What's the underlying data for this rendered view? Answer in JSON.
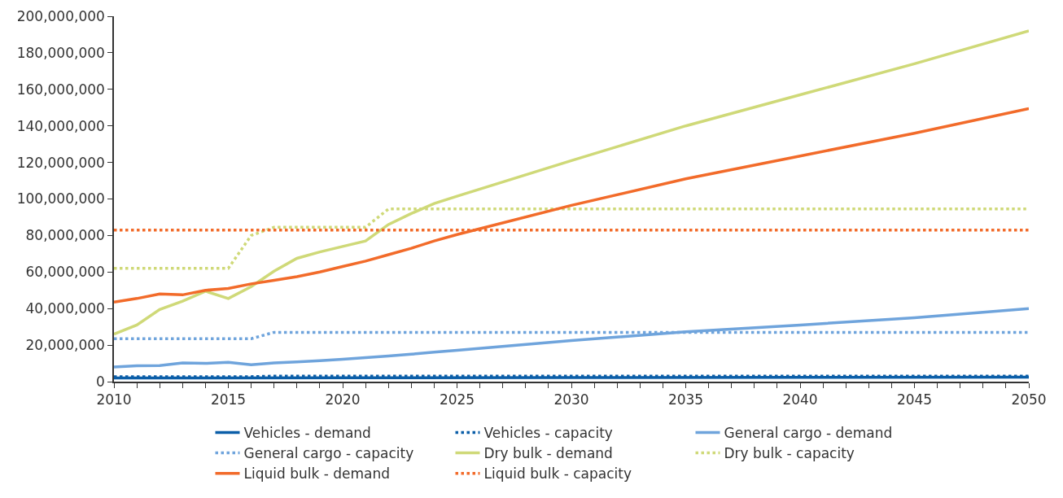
{
  "chart_data": {
    "type": "line",
    "x": [
      2010,
      2011,
      2012,
      2013,
      2014,
      2015,
      2016,
      2017,
      2018,
      2019,
      2020,
      2021,
      2022,
      2023,
      2024,
      2025,
      2030,
      2035,
      2040,
      2045,
      2050
    ],
    "series": [
      {
        "name": "Vehicles - demand",
        "color": "#0b5ea8",
        "line_style": "solid",
        "x": [
          2010,
          2020,
          2030,
          2040,
          2050
        ],
        "values": [
          2000000,
          2100000,
          2200000,
          2300000,
          2400000
        ]
      },
      {
        "name": "Vehicles - capacity",
        "color": "#0b5ea8",
        "line_style": "dotted",
        "x": [
          2010,
          2016,
          2017,
          2050
        ],
        "values": [
          2700000,
          2700000,
          3000000,
          3000000
        ]
      },
      {
        "name": "General cargo - demand",
        "color": "#6fa4dc",
        "line_style": "solid",
        "values": [
          8000000,
          8700000,
          8800000,
          10200000,
          10000000,
          10600000,
          9200000,
          10200000,
          10800000,
          11500000,
          12300000,
          13100000,
          14000000,
          15000000,
          16100000,
          17200000,
          22500000,
          27300000,
          31000000,
          35000000,
          40000000
        ]
      },
      {
        "name": "General cargo - capacity",
        "color": "#6fa4dc",
        "line_style": "dotted",
        "x": [
          2010,
          2016,
          2017,
          2050
        ],
        "values": [
          23500000,
          23500000,
          27000000,
          27000000
        ]
      },
      {
        "name": "Dry bulk - demand",
        "color": "#cfd978",
        "line_style": "solid",
        "values": [
          26000000,
          31000000,
          39500000,
          44000000,
          49500000,
          45500000,
          52000000,
          60500000,
          67500000,
          71000000,
          74000000,
          77000000,
          86000000,
          92000000,
          97500000,
          101500000,
          121000000,
          140000000,
          157000000,
          174000000,
          192000000
        ]
      },
      {
        "name": "Dry bulk - capacity",
        "color": "#cfd978",
        "line_style": "dotted",
        "x": [
          2010,
          2015,
          2016,
          2017,
          2021,
          2022,
          2050
        ],
        "values": [
          62000000,
          62000000,
          80000000,
          84500000,
          84500000,
          94500000,
          94500000
        ]
      },
      {
        "name": "Liquid bulk - demand",
        "color": "#f26b2a",
        "line_style": "solid",
        "values": [
          43500000,
          45500000,
          48000000,
          47500000,
          50000000,
          51000000,
          53500000,
          55500000,
          57500000,
          60000000,
          63000000,
          66000000,
          69500000,
          73000000,
          77000000,
          80500000,
          96500000,
          111000000,
          123500000,
          136000000,
          149500000
        ]
      },
      {
        "name": "Liquid bulk - capacity",
        "color": "#f26b2a",
        "line_style": "dotted",
        "x": [
          2010,
          2050
        ],
        "values": [
          83000000,
          83000000
        ]
      }
    ],
    "xlim": [
      2010,
      2050
    ],
    "xticks": [
      2010,
      {
        "value": 2011,
        "label": null
      },
      {
        "value": 2012,
        "label": null
      },
      {
        "value": 2013,
        "label": null
      },
      {
        "value": 2014,
        "label": null
      },
      2015,
      {
        "value": 2016,
        "label": null
      },
      {
        "value": 2017,
        "label": null
      },
      {
        "value": 2018,
        "label": null
      },
      {
        "value": 2019,
        "label": null
      },
      2020,
      {
        "value": 2021,
        "label": null
      },
      {
        "value": 2022,
        "label": null
      },
      {
        "value": 2023,
        "label": null
      },
      {
        "value": 2024,
        "label": null
      },
      2025,
      {
        "value": 2026,
        "label": null
      },
      {
        "value": 2027,
        "label": null
      },
      {
        "value": 2028,
        "label": null
      },
      {
        "value": 2029,
        "label": null
      },
      2030,
      {
        "value": 2031,
        "label": null
      },
      {
        "value": 2032,
        "label": null
      },
      {
        "value": 2033,
        "label": null
      },
      {
        "value": 2034,
        "label": null
      },
      2035,
      {
        "value": 2036,
        "label": null
      },
      {
        "value": 2037,
        "label": null
      },
      {
        "value": 2038,
        "label": null
      },
      {
        "value": 2039,
        "label": null
      },
      2040,
      {
        "value": 2041,
        "label": null
      },
      {
        "value": 2042,
        "label": null
      },
      {
        "value": 2043,
        "label": null
      },
      {
        "value": 2044,
        "label": null
      },
      2045,
      {
        "value": 2046,
        "label": null
      },
      {
        "value": 2047,
        "label": null
      },
      {
        "value": 2048,
        "label": null
      },
      {
        "value": 2049,
        "label": null
      },
      2050
    ],
    "ylim": [
      0,
      200000000
    ],
    "yticks": [
      0,
      {
        "value": 20000000,
        "label": "20,000,000"
      },
      {
        "value": 40000000,
        "label": "40,000,000"
      },
      {
        "value": 60000000,
        "label": "60,000,000"
      },
      {
        "value": 80000000,
        "label": "80,000,000"
      },
      {
        "value": 100000000,
        "label": "100,000,000"
      },
      {
        "value": 120000000,
        "label": "120,000,000"
      },
      {
        "value": 140000000,
        "label": "140,000,000"
      },
      {
        "value": 160000000,
        "label": "160,000,000"
      },
      {
        "value": 180000000,
        "label": "180,000,000"
      },
      {
        "value": 200000000,
        "label": "200,000,000"
      }
    ],
    "grid": false,
    "legend": "bottom",
    "marker": "none"
  }
}
